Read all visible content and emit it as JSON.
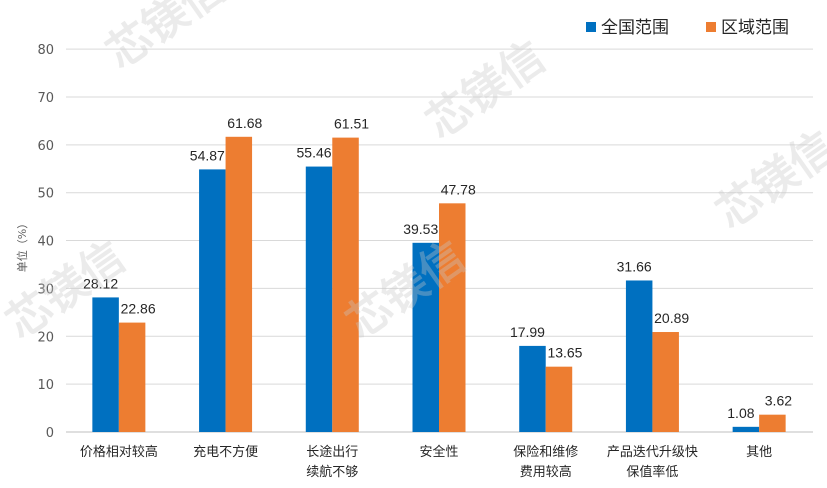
{
  "chart_data": {
    "type": "bar",
    "categories": [
      [
        "价格相对较高"
      ],
      [
        "充电不方便"
      ],
      [
        "长途出行",
        "续航不够"
      ],
      [
        "安全性"
      ],
      [
        "保险和维修",
        "费用较高"
      ],
      [
        "产品迭代升级快",
        "保值率低"
      ],
      [
        "其他"
      ]
    ],
    "series": [
      {
        "name": "全国范围",
        "color": "#0070C0",
        "values": [
          28.12,
          54.87,
          55.46,
          39.53,
          17.99,
          31.66,
          1.08
        ]
      },
      {
        "name": "区域范围",
        "color": "#ED7D31",
        "values": [
          22.86,
          61.68,
          61.51,
          47.78,
          13.65,
          20.89,
          3.62
        ]
      }
    ],
    "ylabel": "单位（%）",
    "ylim": [
      0,
      80
    ],
    "yticks": [
      0,
      10,
      20,
      30,
      40,
      50,
      60,
      70,
      80
    ],
    "grid": true,
    "legend": "top-right"
  },
  "watermark": "芯镁信"
}
